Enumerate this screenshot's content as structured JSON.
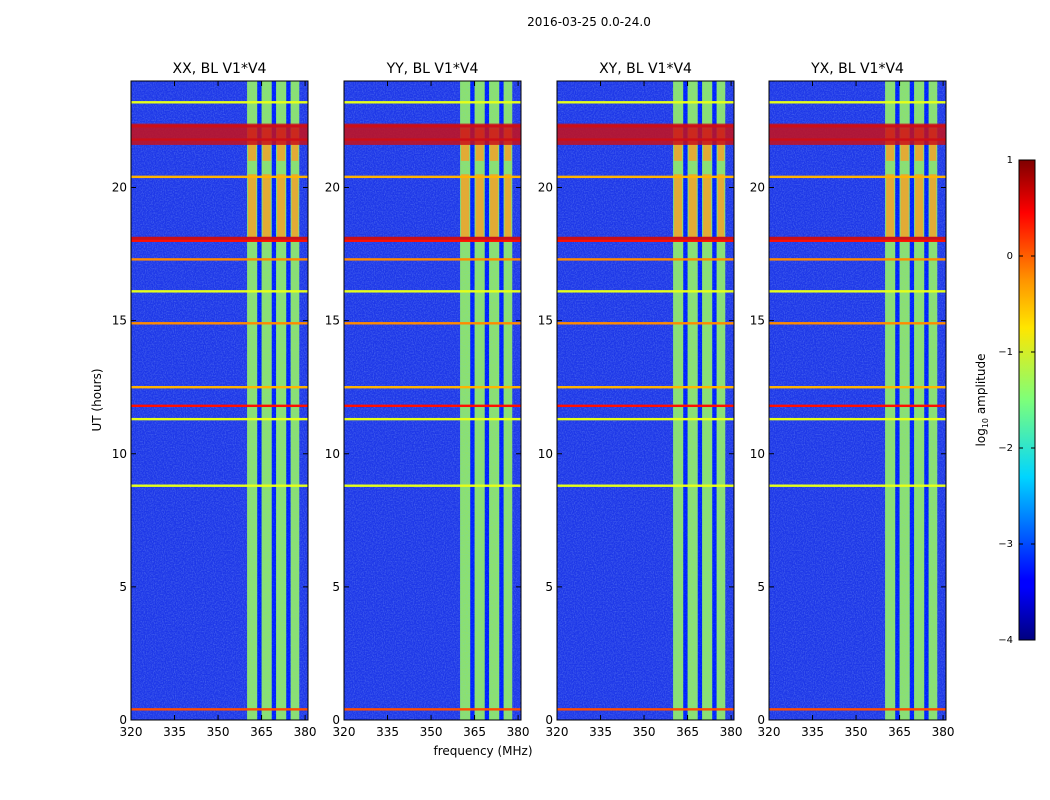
{
  "figure": {
    "suptitle": "2016-03-25 0.0-24.0",
    "xlabel": "frequency (MHz)",
    "ylabel": "UT (hours)"
  },
  "colors": {
    "background": "#ffffff",
    "field": "#1e38e8",
    "band": "#8ce070",
    "strong": "#c8101a",
    "hot": "#ff9a20",
    "line_red": "#e03020",
    "line_yellow": "#f0e060"
  },
  "chart_data": {
    "type": "heatmap",
    "title": "2016-03-25 0.0-24.0",
    "xlabel": "frequency (MHz)",
    "ylabel": "UT (hours)",
    "xlim": [
      320,
      381
    ],
    "ylim": [
      0,
      24
    ],
    "x_ticks": [
      320,
      335,
      350,
      365,
      380
    ],
    "y_ticks": [
      0,
      5,
      10,
      15,
      20
    ],
    "panels": [
      {
        "title": "XX, BL V1*V4"
      },
      {
        "title": "YY, BL V1*V4"
      },
      {
        "title": "XY, BL V1*V4"
      },
      {
        "title": "YX, BL V1*V4"
      }
    ],
    "rfi_band_mhz": [
      360,
      378
    ],
    "band_subchannels_mhz": [
      [
        360,
        363.5
      ],
      [
        365,
        368.5
      ],
      [
        370,
        373.5
      ],
      [
        375,
        378
      ]
    ],
    "rfi_lines_ut": [
      {
        "t": 0.4,
        "level": 0.0
      },
      {
        "t": 8.8,
        "level": -1.0
      },
      {
        "t": 11.3,
        "level": -1.0
      },
      {
        "t": 11.8,
        "level": 0.3
      },
      {
        "t": 12.5,
        "level": -0.5
      },
      {
        "t": 14.9,
        "level": -0.3
      },
      {
        "t": 16.1,
        "level": -1.0
      },
      {
        "t": 17.3,
        "level": -0.3
      },
      {
        "t": 18.0,
        "level": 0.3
      },
      {
        "t": 20.4,
        "level": -0.5
      },
      {
        "t": 21.8,
        "level": 0.5
      },
      {
        "t": 22.3,
        "level": 0.5
      },
      {
        "t": 23.2,
        "level": -1.0
      }
    ],
    "colorbar": {
      "label_prefix": "log",
      "label_sub": "10",
      "label_suffix": " amplitude",
      "range": [
        -4,
        1
      ],
      "ticks": [
        1,
        0,
        -1,
        -2,
        -3,
        -4
      ],
      "tick_labels": [
        "1",
        "0",
        "−1",
        "−2",
        "−3",
        "−4"
      ],
      "colormap": "jet"
    }
  }
}
